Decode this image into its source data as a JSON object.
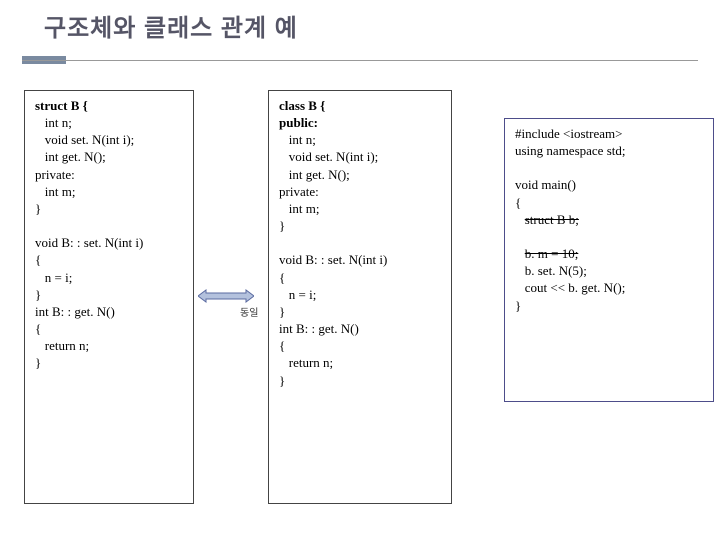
{
  "title": "구조체와 클래스 관계 예",
  "arrow_label": "동일",
  "colors": {
    "title_color": "#555566",
    "accent_bar": "#7a8aa0",
    "rule": "#999999",
    "box_border": "#444444",
    "box3_border": "#4d4d8a",
    "arrow_fill": "#b3c1dd",
    "arrow_stroke": "#5a6aa0"
  },
  "box1": {
    "lines": [
      {
        "t": "struct B {",
        "bold": true
      },
      {
        "t": "   int n;"
      },
      {
        "t": "   void set. N(int i);"
      },
      {
        "t": "   int get. N();"
      },
      {
        "t": "private:"
      },
      {
        "t": "   int m;"
      },
      {
        "t": "}"
      },
      {
        "t": ""
      },
      {
        "t": "void B: : set. N(int i)"
      },
      {
        "t": "{"
      },
      {
        "t": "   n = i;"
      },
      {
        "t": "}"
      },
      {
        "t": "int B: : get. N()"
      },
      {
        "t": "{"
      },
      {
        "t": "   return n;"
      },
      {
        "t": "}"
      }
    ]
  },
  "box2": {
    "lines": [
      {
        "t": "class B {",
        "bold": true
      },
      {
        "t": "public:",
        "bold": true
      },
      {
        "t": "   int n;"
      },
      {
        "t": "   void set. N(int i);"
      },
      {
        "t": "   int get. N();"
      },
      {
        "t": "private:"
      },
      {
        "t": "   int m;"
      },
      {
        "t": "}"
      },
      {
        "t": ""
      },
      {
        "t": "void B: : set. N(int i)"
      },
      {
        "t": "{"
      },
      {
        "t": "   n = i;"
      },
      {
        "t": "}"
      },
      {
        "t": "int B: : get. N()"
      },
      {
        "t": "{"
      },
      {
        "t": "   return n;"
      },
      {
        "t": "}"
      }
    ]
  },
  "box3": {
    "lines": [
      {
        "t": "#include <iostream>"
      },
      {
        "t": "using namespace std;"
      },
      {
        "t": ""
      },
      {
        "t": "void main()"
      },
      {
        "t": "{"
      },
      {
        "t": "   struct B b;",
        "strike": true,
        "indent_keep": "   "
      },
      {
        "t": ""
      },
      {
        "t": "   b. m = 10;",
        "strike": true,
        "indent_keep": "   "
      },
      {
        "t": "   b. set. N(5);"
      },
      {
        "t": "   cout << b. get. N();"
      },
      {
        "t": "}"
      }
    ]
  }
}
